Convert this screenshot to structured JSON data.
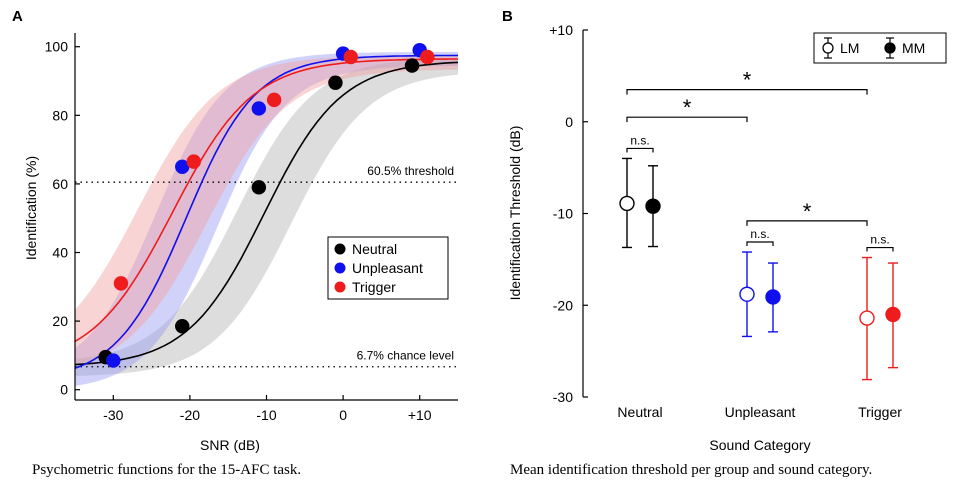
{
  "captions": {
    "a": "Psychometric functions for the 15-AFC task.",
    "b": "Mean identification threshold per group and sound category."
  },
  "chart_data": [
    {
      "panel_label": "A",
      "type": "line",
      "title": "",
      "xlabel": "SNR (dB)",
      "ylabel": "Identification (%)",
      "xlim": [
        -35,
        15
      ],
      "ylim": [
        -3,
        104
      ],
      "x_ticks": [
        -30,
        -20,
        -10,
        0,
        10
      ],
      "x_tick_labels": [
        "-30",
        "-20",
        "-10",
        "0",
        "+10"
      ],
      "y_ticks": [
        0,
        20,
        40,
        60,
        80,
        100
      ],
      "y_tick_labels": [
        "0",
        "20",
        "40",
        "60",
        "80",
        "100"
      ],
      "reference_lines": [
        {
          "y": 60.5,
          "label": "60.5% threshold"
        },
        {
          "y": 6.7,
          "label": "6.7% chance level"
        }
      ],
      "legend": {
        "position": "center-right"
      },
      "series": [
        {
          "name": "Neutral",
          "color": "#000000",
          "band_color": "#b4b4b4",
          "x": [
            -31,
            -21,
            -11,
            -1,
            9
          ],
          "y": [
            9.5,
            18.5,
            59,
            89.5,
            94.5
          ],
          "fit": {
            "min": 6.7,
            "max": 96,
            "midpoint": -10.3,
            "slope": 0.2
          },
          "band": {
            "shift": 3.5
          }
        },
        {
          "name": "Unpleasant",
          "color": "#1010ee",
          "band_color": "#9a9cf2",
          "x": [
            -30,
            -21,
            -11,
            0,
            10
          ],
          "y": [
            8.5,
            65,
            82,
            98,
            99
          ],
          "fit": {
            "min": 2.5,
            "max": 97.5,
            "midpoint": -20.5,
            "slope": 0.22
          },
          "band": {
            "shift": 4
          }
        },
        {
          "name": "Trigger",
          "color": "#ee1c1c",
          "band_color": "#f2a0a0",
          "x": [
            -29,
            -19.5,
            -9,
            1,
            11
          ],
          "y": [
            31,
            66.5,
            84.5,
            97,
            97
          ],
          "fit": {
            "min": 6.7,
            "max": 96.5,
            "midpoint": -22.3,
            "slope": 0.19
          },
          "band": {
            "shift": 4.5
          }
        }
      ]
    },
    {
      "panel_label": "B",
      "type": "scatter",
      "title": "",
      "xlabel": "Sound Category",
      "ylabel": "Identification Threshold (dB)",
      "ylim": [
        -30,
        10
      ],
      "y_ticks": [
        10,
        0,
        -10,
        -20,
        -30
      ],
      "y_tick_labels": [
        "+10",
        "0",
        "-10",
        "-20",
        "-30"
      ],
      "categories": [
        "Neutral",
        "Unpleasant",
        "Trigger"
      ],
      "category_colors": [
        "#000000",
        "#1010ee",
        "#ee1c1c"
      ],
      "legend": {
        "position": "top-right",
        "entries": [
          {
            "name": "LM",
            "marker": "open"
          },
          {
            "name": "MM",
            "marker": "filled"
          }
        ]
      },
      "series": [
        {
          "name": "LM",
          "marker": "open",
          "values": [
            -8.9,
            -18.8,
            -21.4
          ],
          "err_low": [
            -13.7,
            -23.4,
            -28.1
          ],
          "err_high": [
            -4,
            -14.2,
            -14.8
          ]
        },
        {
          "name": "MM",
          "marker": "filled",
          "values": [
            -9.2,
            -19.1,
            -21
          ],
          "err_low": [
            -13.6,
            -22.9,
            -26.8
          ],
          "err_high": [
            -4.8,
            -15.4,
            -15.4
          ]
        }
      ],
      "annotations": [
        {
          "label": "n.s.",
          "category": 0,
          "kind": "pair"
        },
        {
          "label": "n.s.",
          "category": 1,
          "kind": "pair"
        },
        {
          "label": "n.s.",
          "category": 2,
          "kind": "pair"
        },
        {
          "label": "*",
          "from": 0,
          "to": 1,
          "y": 0.5
        },
        {
          "label": "*",
          "from": 0,
          "to": 2,
          "y": 3.5
        },
        {
          "label": "*",
          "from": 1,
          "to": 2,
          "y": -10.8
        }
      ]
    }
  ]
}
